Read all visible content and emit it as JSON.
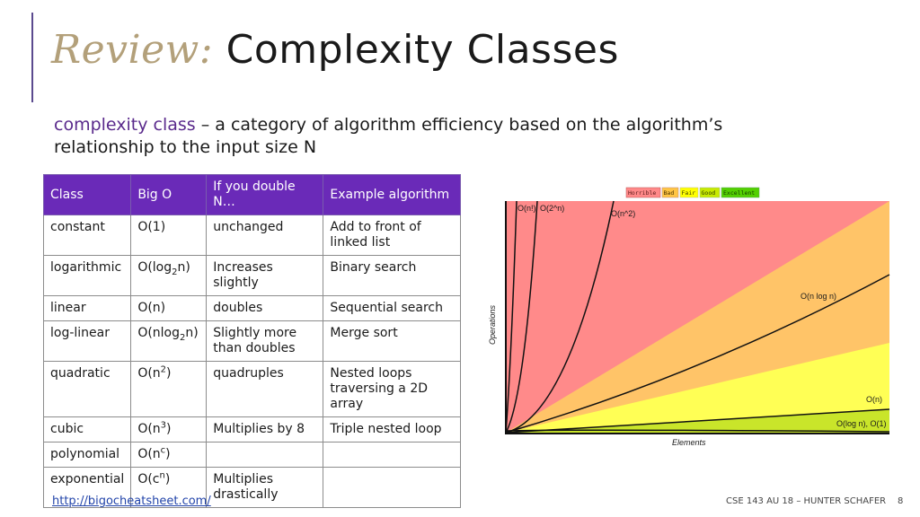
{
  "slide": {
    "title_prefix": "Review:",
    "title": "Complexity Classes",
    "definition_term": "complexity class",
    "definition_text": " – a category of algorithm efficiency based on the algorithm’s relationship to the input size N"
  },
  "table": {
    "headers": [
      "Class",
      "Big O",
      "If you double N…",
      "Example algorithm"
    ],
    "rows": [
      {
        "cls": "constant",
        "big_o": "O(1)",
        "double": "unchanged",
        "example": "Add to front of linked list"
      },
      {
        "cls": "logarithmic",
        "big_o_pre": "O(log",
        "big_o_sub": "2",
        "big_o_post": "n)",
        "double": "Increases slightly",
        "example": "Binary search"
      },
      {
        "cls": "linear",
        "big_o": "O(n)",
        "double": "doubles",
        "example": "Sequential search"
      },
      {
        "cls": "log-linear",
        "big_o_pre": "O(nlog",
        "big_o_sub": "2",
        "big_o_post": "n)",
        "double": "Slightly more than doubles",
        "example": "Merge sort"
      },
      {
        "cls": "quadratic",
        "big_o_pre": "O(n",
        "big_o_sup": "2",
        "big_o_post": ")",
        "double": "quadruples",
        "example": "Nested loops traversing a 2D array"
      },
      {
        "cls": "cubic",
        "big_o_pre": "O(n",
        "big_o_sup": "3",
        "big_o_post": ")",
        "double": "Multiplies by 8",
        "example": "Triple nested loop"
      },
      {
        "cls": "polynomial",
        "big_o_pre": "O(n",
        "big_o_sup": "c",
        "big_o_post": ")",
        "double": "",
        "example": ""
      },
      {
        "cls": "exponential",
        "big_o_pre": "O(c",
        "big_o_sup": "n",
        "big_o_post": ")",
        "double": "Multiplies drastically",
        "example": ""
      }
    ]
  },
  "chart": {
    "legend": [
      "Horrible",
      "Bad",
      "Fair",
      "Good",
      "Excellent"
    ],
    "legend_colors": [
      "#ff8989",
      "#ffc543",
      "#ffff00",
      "#c8ea00",
      "#53d000"
    ],
    "x_label": "Elements",
    "y_label": "Operations",
    "curve_labels": {
      "factorial": "O(n!)",
      "exponential": "O(2^n)",
      "quadratic": "O(n^2)",
      "nlogn": "O(n log n)",
      "linear": "O(n)",
      "log_const": "O(log n), O(1)"
    },
    "region_colors": {
      "horrible": "#ff8a8a",
      "bad": "#ffc468",
      "fair": "#ffff55",
      "good": "#c9e52a"
    }
  },
  "footer": {
    "link": "http://bigocheatsheet.com/",
    "course": "CSE 143 AU 18 – HUNTER SCHAFER",
    "page": "8"
  }
}
